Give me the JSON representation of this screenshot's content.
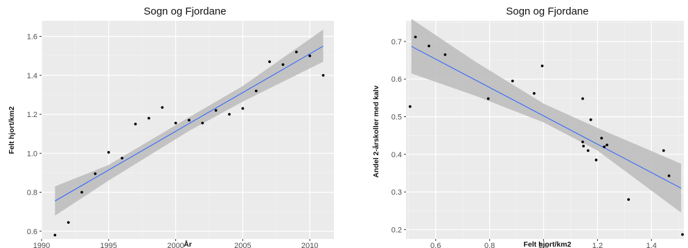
{
  "chart_data": [
    {
      "type": "scatter",
      "title": "Sogn og Fjordane",
      "xlabel": "År",
      "ylabel": "Felt hjort/km2",
      "xlim": [
        1990,
        2011.8
      ],
      "ylim": [
        0.56,
        1.68
      ],
      "xticks": [
        1990,
        1995,
        2000,
        2005,
        2010
      ],
      "xtick_labels": [
        "1990",
        "1995",
        "2000",
        "2005",
        "2010"
      ],
      "yticks": [
        0.6,
        0.8,
        1.0,
        1.2,
        1.4,
        1.6
      ],
      "ytick_labels": [
        "0.6",
        "0.8",
        "1.0",
        "1.2",
        "1.4",
        "1.6"
      ],
      "grid": true,
      "x": [
        1991,
        1992,
        1993,
        1994,
        1995,
        1996,
        1997,
        1998,
        1999,
        2000,
        2001,
        2002,
        2003,
        2004,
        2005,
        2006,
        2007,
        2008,
        2009,
        2010,
        2011
      ],
      "y": [
        0.58,
        0.645,
        0.8,
        0.895,
        1.005,
        0.975,
        1.15,
        1.18,
        1.235,
        1.155,
        1.17,
        1.155,
        1.22,
        1.2,
        1.23,
        1.32,
        1.47,
        1.455,
        1.52,
        1.5,
        1.4
      ],
      "fit": {
        "x": [
          1991,
          2011
        ],
        "y": [
          0.755,
          1.55
        ]
      },
      "band": {
        "x": [
          1991,
          1995,
          2001,
          2005,
          2011
        ],
        "lower": [
          0.68,
          0.86,
          1.115,
          1.265,
          1.47
        ],
        "upper": [
          0.83,
          0.94,
          1.185,
          1.345,
          1.635
        ]
      },
      "colors": {
        "points": "#000000",
        "fit": "#3366ff",
        "band": "#bbbbbb",
        "panel": "#ebebeb"
      }
    },
    {
      "type": "scatter",
      "title": "Sogn og Fjordane",
      "xlabel": "Felt hjort/km2",
      "ylabel": "Andel 2-årskoller med kalv",
      "xlim": [
        0.49,
        1.52
      ],
      "ylim": [
        0.175,
        0.755
      ],
      "xticks": [
        0.6,
        0.8,
        1.0,
        1.2,
        1.4
      ],
      "xtick_labels": [
        "0.6",
        "0.8",
        "1.0",
        "1.2",
        "1.4"
      ],
      "yticks": [
        0.2,
        0.3,
        0.4,
        0.5,
        0.6,
        0.7
      ],
      "ytick_labels": [
        "0.2",
        "0.3",
        "0.4",
        "0.5",
        "0.6",
        "0.7"
      ],
      "grid": true,
      "x": [
        0.505,
        0.525,
        0.575,
        0.635,
        0.795,
        0.885,
        0.965,
        0.995,
        1.145,
        1.145,
        1.148,
        1.165,
        1.175,
        1.195,
        1.215,
        1.225,
        1.235,
        1.315,
        1.445,
        1.465,
        1.515
      ],
      "y": [
        0.527,
        0.712,
        0.688,
        0.665,
        0.548,
        0.595,
        0.562,
        0.635,
        0.548,
        0.433,
        0.422,
        0.41,
        0.492,
        0.385,
        0.443,
        0.42,
        0.425,
        0.28,
        0.41,
        0.343,
        0.187
      ],
      "fit": {
        "x": [
          0.51,
          1.51
        ],
        "y": [
          0.687,
          0.31
        ]
      },
      "band": {
        "x": [
          0.51,
          0.75,
          1.0,
          1.2,
          1.51
        ],
        "lower": [
          0.615,
          0.555,
          0.485,
          0.41,
          0.245
        ],
        "upper": [
          0.76,
          0.645,
          0.535,
          0.47,
          0.375
        ]
      },
      "colors": {
        "points": "#000000",
        "fit": "#3366ff",
        "band": "#bbbbbb",
        "panel": "#ebebeb"
      }
    }
  ]
}
